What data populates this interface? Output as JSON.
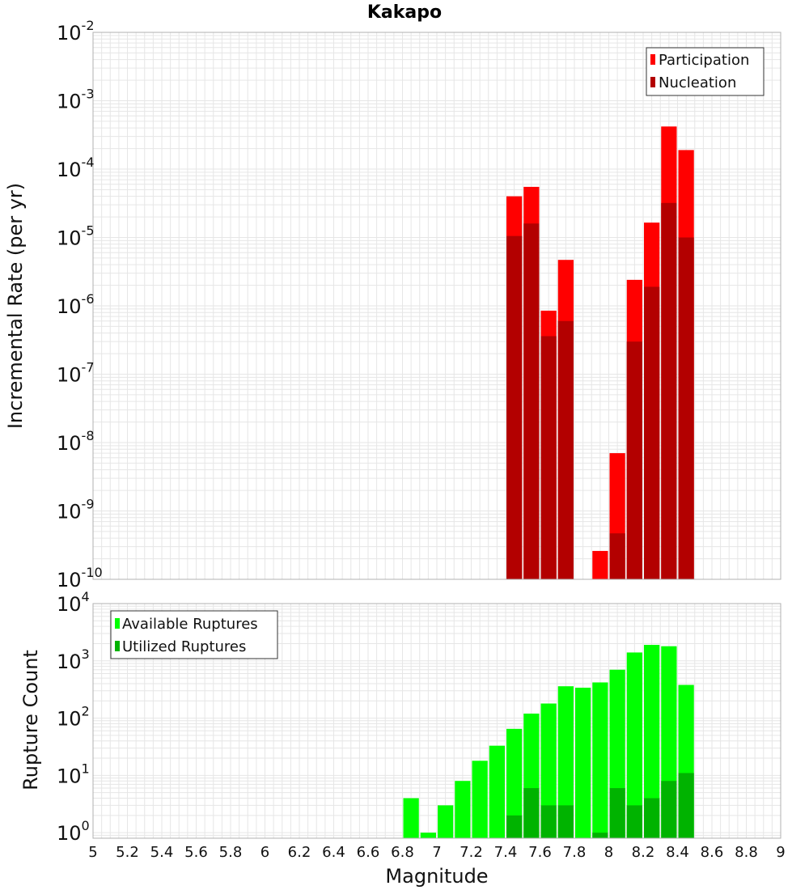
{
  "title": "Kakapo",
  "colors": {
    "participation": "#ff0000",
    "nucleation": "#b30000",
    "available": "#00ff00",
    "utilized": "#00b300",
    "grid": "#e6e6e6",
    "frame": "#b0b0b0"
  },
  "chart_data": [
    {
      "type": "bar",
      "title": "Kakapo",
      "xlabel": "Magnitude",
      "ylabel": "Incremental Rate (per yr)",
      "xlim": [
        5,
        9
      ],
      "ylim": [
        1e-10,
        0.01
      ],
      "yscale": "log",
      "grid": true,
      "legend_position": "top-right",
      "bin_width": 0.1,
      "series": [
        {
          "name": "Participation",
          "x": [
            7.45,
            7.55,
            7.65,
            7.75,
            7.95,
            8.05,
            8.15,
            8.25,
            8.35,
            8.45
          ],
          "values": [
            4e-05,
            5.5e-05,
            8.5e-07,
            4.7e-06,
            2.6e-10,
            7e-09,
            2.4e-06,
            1.65e-05,
            0.00042,
            0.00019
          ]
        },
        {
          "name": "Nucleation",
          "x": [
            7.45,
            7.55,
            7.65,
            7.75,
            7.95,
            8.05,
            8.15,
            8.25,
            8.35,
            8.45
          ],
          "values": [
            1.05e-05,
            1.6e-05,
            3.6e-07,
            6e-07,
            null,
            4.7e-10,
            3e-07,
            1.9e-06,
            3.2e-05,
            1e-05
          ]
        }
      ]
    },
    {
      "type": "bar",
      "xlabel": "Magnitude",
      "ylabel": "Rupture Count",
      "xlim": [
        5,
        9
      ],
      "ylim": [
        0.8,
        10000
      ],
      "yscale": "log",
      "grid": true,
      "legend_position": "top-left",
      "bin_width": 0.1,
      "series": [
        {
          "name": "Available Ruptures",
          "x": [
            6.85,
            6.95,
            7.05,
            7.15,
            7.25,
            7.35,
            7.45,
            7.55,
            7.65,
            7.75,
            7.85,
            7.95,
            8.05,
            8.15,
            8.25,
            8.35,
            8.45
          ],
          "values": [
            4,
            1,
            3,
            8,
            18,
            33,
            65,
            120,
            180,
            360,
            340,
            420,
            700,
            1400,
            1900,
            1800,
            380
          ]
        },
        {
          "name": "Utilized Ruptures",
          "x": [
            7.45,
            7.55,
            7.65,
            7.75,
            7.95,
            8.05,
            8.15,
            8.25,
            8.35,
            8.45
          ],
          "values": [
            2,
            6,
            3,
            3,
            1,
            6,
            3,
            4,
            8,
            11
          ]
        }
      ]
    }
  ],
  "x_ticks": [
    "5",
    "5.2",
    "5.4",
    "5.6",
    "5.8",
    "6",
    "6.2",
    "6.4",
    "6.6",
    "6.8",
    "7",
    "7.2",
    "7.4",
    "7.6",
    "7.8",
    "8",
    "8.2",
    "8.4",
    "8.6",
    "8.8",
    "9"
  ],
  "top_y_ticks": [
    {
      "base": "10",
      "exp": "-2"
    },
    {
      "base": "10",
      "exp": "-3"
    },
    {
      "base": "10",
      "exp": "-4"
    },
    {
      "base": "10",
      "exp": "-5"
    },
    {
      "base": "10",
      "exp": "-6"
    },
    {
      "base": "10",
      "exp": "-7"
    },
    {
      "base": "10",
      "exp": "-8"
    },
    {
      "base": "10",
      "exp": "-9"
    },
    {
      "base": "10",
      "exp": "-10"
    }
  ],
  "bottom_y_ticks": [
    {
      "base": "10",
      "exp": "4"
    },
    {
      "base": "10",
      "exp": "3"
    },
    {
      "base": "10",
      "exp": "2"
    },
    {
      "base": "10",
      "exp": "1"
    },
    {
      "base": "10",
      "exp": "0"
    }
  ]
}
